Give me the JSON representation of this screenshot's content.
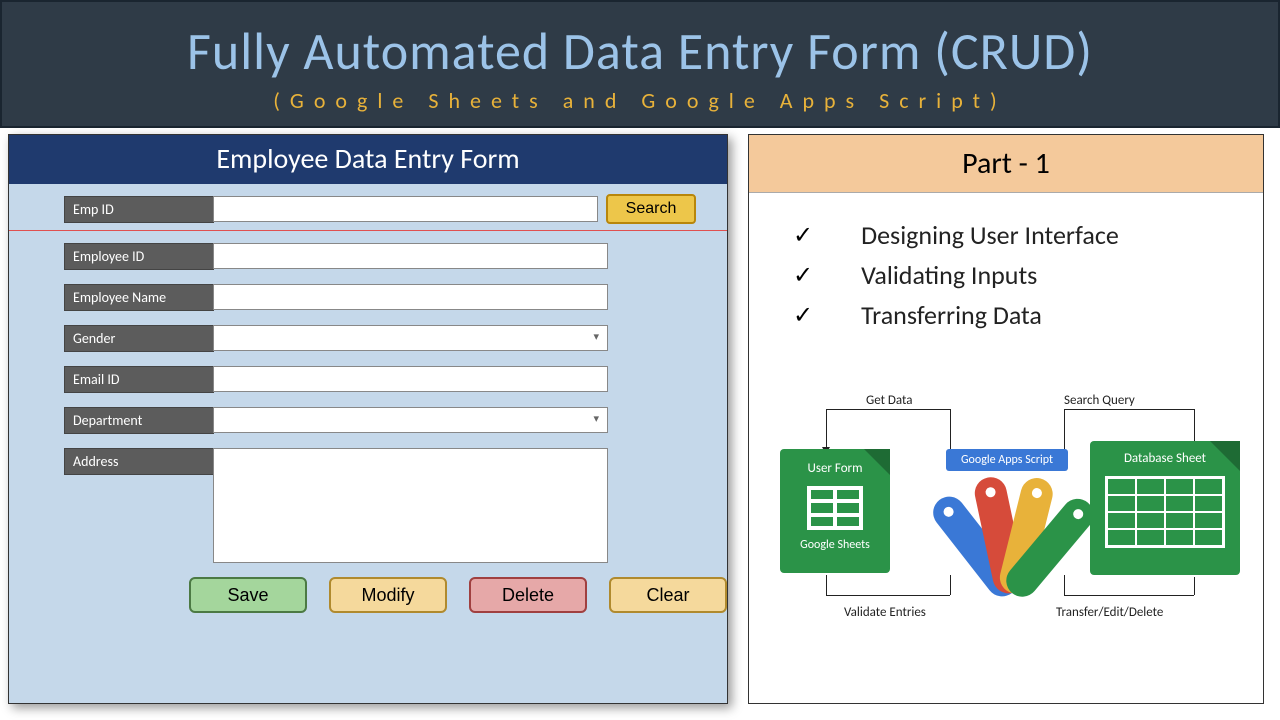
{
  "header": {
    "title": "Fully Automated Data Entry Form (CRUD)",
    "subtitle": "(Google Sheets and Google Apps Script)",
    "title_color": "#9cc3e8",
    "subtitle_color": "#e8b23a",
    "bg_color": "#2f3b47"
  },
  "form": {
    "title": "Employee Data Entry Form",
    "title_bg": "#1f3a6e",
    "panel_bg": "#c5d8ea",
    "search": {
      "label": "Emp ID",
      "value": "",
      "button": "Search",
      "button_bg": "#edc64a"
    },
    "fields": [
      {
        "label": "Employee ID",
        "type": "text",
        "value": ""
      },
      {
        "label": "Employee Name",
        "type": "text",
        "value": ""
      },
      {
        "label": "Gender",
        "type": "select",
        "value": ""
      },
      {
        "label": "Email ID",
        "type": "text",
        "value": ""
      },
      {
        "label": "Department",
        "type": "select",
        "value": ""
      },
      {
        "label": "Address",
        "type": "textarea",
        "value": ""
      }
    ],
    "buttons": {
      "save": {
        "label": "Save",
        "bg": "#a4d69c"
      },
      "modify": {
        "label": "Modify",
        "bg": "#f5d99c"
      },
      "delete": {
        "label": "Delete",
        "bg": "#e6a8a8"
      },
      "clear": {
        "label": "Clear",
        "bg": "#f5d99c"
      }
    }
  },
  "side": {
    "part_title": "Part - 1",
    "part_bg": "#f4c99b",
    "bullets": [
      "Designing User Interface",
      "Validating Inputs",
      "Transferring Data"
    ],
    "diagram": {
      "labels": {
        "get_data": "Get Data",
        "search_query": "Search Query",
        "validate": "Validate Entries",
        "transfer": "Transfer/Edit/Delete"
      },
      "sheets": {
        "title": "User Form",
        "footer": "Google Sheets",
        "color": "#2b9348"
      },
      "apps": {
        "tag": "Google Apps Script",
        "colors": [
          "#3a78d6",
          "#d64b3a",
          "#e8b23a",
          "#2b9348"
        ]
      },
      "db": {
        "title": "Database Sheet",
        "color": "#2b9348"
      }
    }
  }
}
